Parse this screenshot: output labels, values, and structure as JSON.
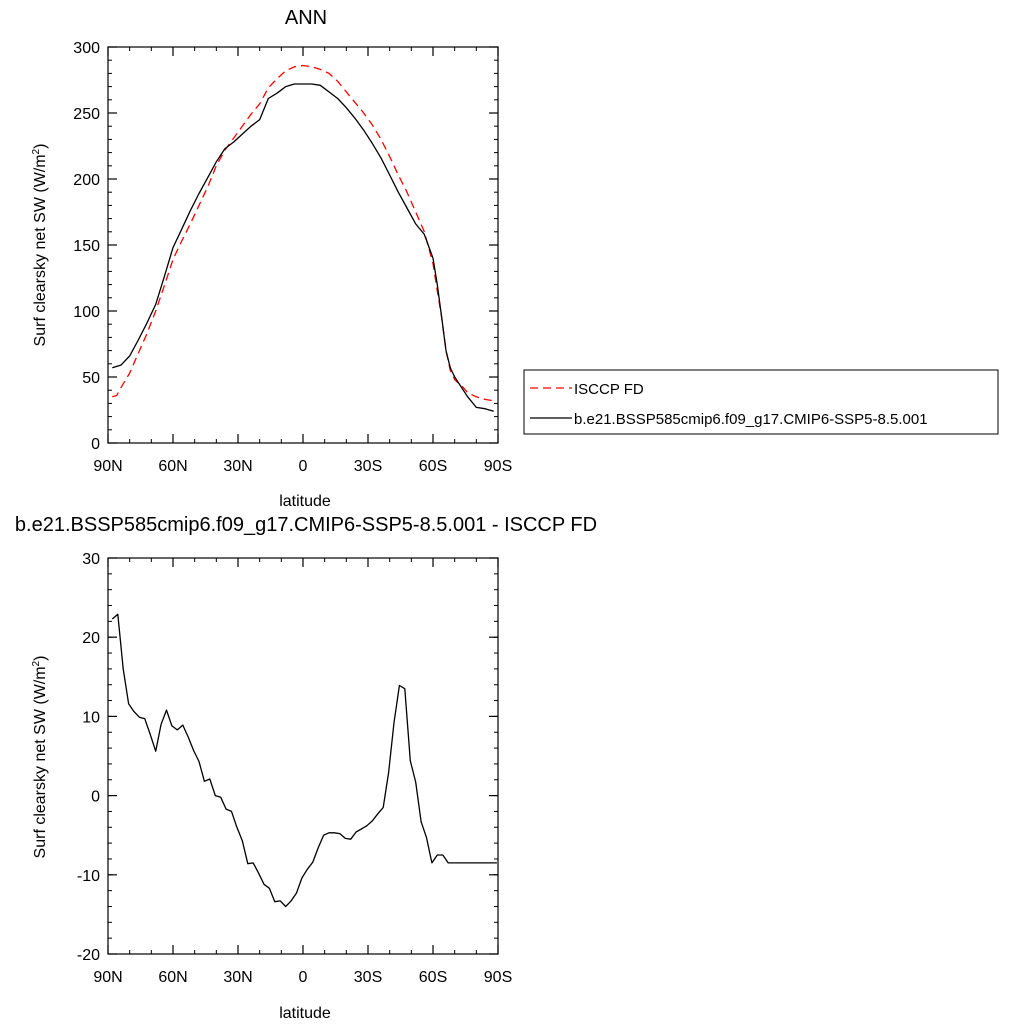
{
  "chart_data": [
    {
      "type": "line",
      "title": "ANN",
      "xlabel": "latitude",
      "ylabel": "Surf clearsky net SW (W/m",
      "ylabel_sup": "2",
      "ylabel_close": ")",
      "xlim": [
        90,
        -90
      ],
      "ylim": [
        0,
        300
      ],
      "x_ticks": [
        90,
        60,
        30,
        0,
        -30,
        -60,
        -90
      ],
      "x_tick_labels": [
        "90N",
        "60N",
        "30N",
        "0",
        "30S",
        "60S",
        "90S"
      ],
      "y_ticks": [
        0,
        50,
        100,
        150,
        200,
        250,
        300
      ],
      "y_tick_labels": [
        "0",
        "50",
        "100",
        "150",
        "200",
        "250",
        "300"
      ],
      "legend_placement": "right",
      "series": [
        {
          "name": "ISCCP FD",
          "color": "#ff0000",
          "dash": "dashed",
          "x": [
            88,
            86,
            84,
            80,
            76,
            72,
            68,
            64,
            60,
            56,
            52,
            48,
            44,
            40,
            36,
            32,
            28,
            24,
            20,
            16,
            12,
            8,
            4,
            0,
            -4,
            -8,
            -12,
            -16,
            -20,
            -24,
            -28,
            -32,
            -36,
            -40,
            -44,
            -48,
            -52,
            -56,
            -60,
            -62,
            -64,
            -66,
            -68,
            -70,
            -72,
            -74,
            -76,
            -80,
            -84,
            -88
          ],
          "y": [
            35,
            36,
            42,
            53,
            68,
            83,
            100,
            119,
            139,
            153,
            166,
            180,
            194,
            210,
            222,
            231,
            240,
            249,
            257,
            269,
            276,
            282,
            285,
            286,
            285,
            283,
            280,
            274,
            266,
            258,
            250,
            241,
            230,
            217,
            203,
            190,
            175,
            160,
            136,
            115,
            95,
            70,
            55,
            48,
            45,
            42,
            38,
            35,
            33,
            32
          ]
        },
        {
          "name": "b.e21.BSSP585cmip6.f09_g17.CMIP6-SSP5-8.5.001",
          "color": "#000000",
          "dash": "solid",
          "x": [
            88,
            86,
            84,
            80,
            76,
            72,
            68,
            64,
            60,
            56,
            52,
            48,
            44,
            40,
            36,
            32,
            28,
            24,
            20,
            16,
            12,
            8,
            4,
            0,
            -4,
            -8,
            -12,
            -16,
            -20,
            -24,
            -28,
            -32,
            -36,
            -40,
            -44,
            -48,
            -52,
            -56,
            -60,
            -62,
            -64,
            -66,
            -68,
            -70,
            -72,
            -74,
            -76,
            -80,
            -84,
            -88
          ],
          "y": [
            57,
            58,
            59,
            66,
            78,
            91,
            105,
            126,
            148,
            162,
            176,
            189,
            201,
            213,
            223,
            228,
            234,
            240,
            245,
            261,
            265,
            270,
            272,
            272,
            272,
            271,
            266,
            261,
            254,
            246,
            237,
            227,
            216,
            203,
            190,
            178,
            166,
            158,
            140,
            120,
            95,
            70,
            57,
            50,
            45,
            40,
            35,
            27,
            26,
            24
          ]
        }
      ]
    },
    {
      "type": "line",
      "title": "b.e21.BSSP585cmip6.f09_g17.CMIP6-SSP5-8.5.001 - ISCCP FD",
      "xlabel": "latitude",
      "ylabel": "Surf clearsky net SW (W/m",
      "ylabel_sup": "2",
      "ylabel_close": ")",
      "xlim": [
        90,
        -90
      ],
      "ylim": [
        -20,
        30
      ],
      "x_ticks": [
        90,
        60,
        30,
        0,
        -30,
        -60,
        -90
      ],
      "x_tick_labels": [
        "90N",
        "60N",
        "30N",
        "0",
        "30S",
        "60S",
        "90S"
      ],
      "y_ticks": [
        -20,
        -10,
        0,
        10,
        20,
        30
      ],
      "y_tick_labels": [
        "-20",
        "-10",
        "0",
        "10",
        "20",
        "30"
      ],
      "series": [
        {
          "color": "#000000",
          "dash": "solid",
          "x": [
            88,
            85.5,
            83,
            80.5,
            78,
            75.5,
            73,
            70.5,
            68,
            65.5,
            63,
            60.5,
            58,
            55.5,
            53,
            50.5,
            48,
            45.5,
            43,
            40.5,
            38,
            35.5,
            33,
            30.5,
            28,
            25.5,
            23,
            20.5,
            18,
            15.5,
            13,
            10.5,
            8,
            5.5,
            3,
            0.5,
            -2,
            -4.5,
            -7,
            -9.5,
            -12,
            -14.5,
            -17,
            -19.5,
            -22,
            -24.5,
            -27,
            -29.5,
            -32,
            -34.5,
            -37,
            -39.5,
            -42,
            -44.5,
            -47,
            -49.5,
            -52,
            -54.5,
            -57,
            -59.5,
            -62,
            -64.5,
            -67,
            -69.5,
            -72,
            -74.5,
            -77,
            -79.5,
            -82,
            -84.5,
            -87,
            -89.5
          ],
          "y": [
            22.3,
            22.9,
            16.0,
            11.6,
            10.6,
            9.9,
            9.7,
            7.7,
            5.6,
            9.0,
            10.8,
            8.8,
            8.3,
            8.9,
            7.4,
            5.7,
            4.3,
            1.8,
            2.1,
            0.0,
            -0.2,
            -1.7,
            -2.0,
            -4.0,
            -5.7,
            -8.6,
            -8.5,
            -9.8,
            -11.2,
            -11.7,
            -13.4,
            -13.3,
            -14.0,
            -13.3,
            -12.3,
            -10.4,
            -9.3,
            -8.4,
            -6.6,
            -5.0,
            -4.7,
            -4.7,
            -4.8,
            -5.4,
            -5.5,
            -4.6,
            -4.2,
            -3.8,
            -3.2,
            -2.3,
            -1.5,
            2.9,
            9.2,
            13.9,
            13.5,
            4.4,
            1.7,
            -3.3,
            -5.3,
            -8.5,
            -7.5,
            -7.5,
            -8.5,
            -8.5,
            -8.5,
            -8.5,
            -8.5,
            -8.5,
            -8.5,
            -8.5,
            -8.5,
            -8.5
          ]
        }
      ]
    }
  ]
}
